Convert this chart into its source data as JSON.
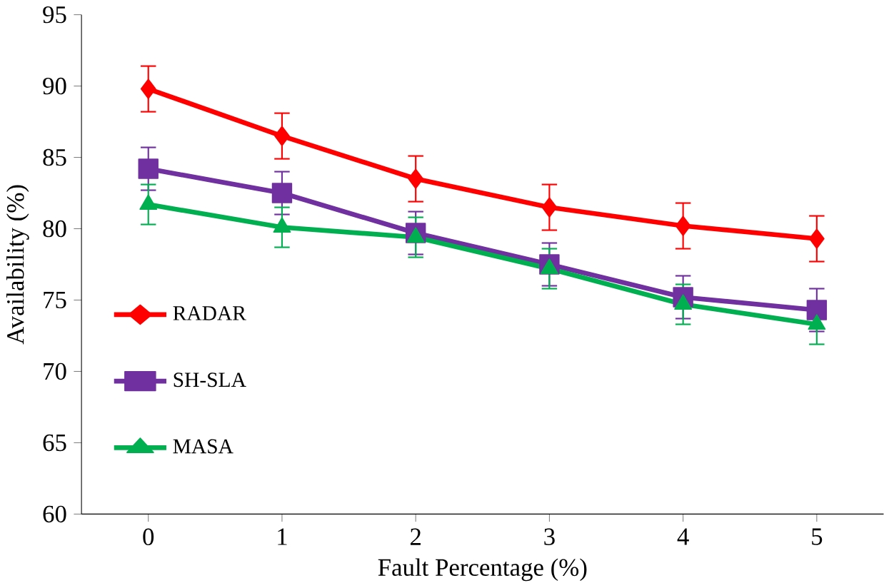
{
  "chart_data": {
    "type": "line",
    "xlabel": "Fault Percentage (%)",
    "ylabel": "Availability (%)",
    "categories": [
      "0",
      "1",
      "2",
      "3",
      "4",
      "5"
    ],
    "ylim": [
      60,
      95
    ],
    "yticks": [
      60,
      65,
      70,
      75,
      80,
      85,
      90,
      95
    ],
    "grid": false,
    "legend": "left",
    "series": [
      {
        "name": "RADAR",
        "color": "#ff0000",
        "marker": "diamond",
        "values": [
          89.8,
          86.5,
          83.5,
          81.5,
          80.2,
          79.3
        ],
        "errors": [
          1.6,
          1.6,
          1.6,
          1.6,
          1.6,
          1.6
        ]
      },
      {
        "name": "SH-SLA",
        "color": "#7030a0",
        "marker": "square",
        "values": [
          84.2,
          82.5,
          79.7,
          77.5,
          75.2,
          74.3
        ],
        "errors": [
          1.5,
          1.5,
          1.5,
          1.5,
          1.5,
          1.5
        ]
      },
      {
        "name": "MASA",
        "color": "#00b050",
        "marker": "triangle",
        "values": [
          81.7,
          80.1,
          79.4,
          77.2,
          74.7,
          73.3
        ],
        "errors": [
          1.4,
          1.4,
          1.4,
          1.4,
          1.4,
          1.4
        ]
      }
    ]
  }
}
